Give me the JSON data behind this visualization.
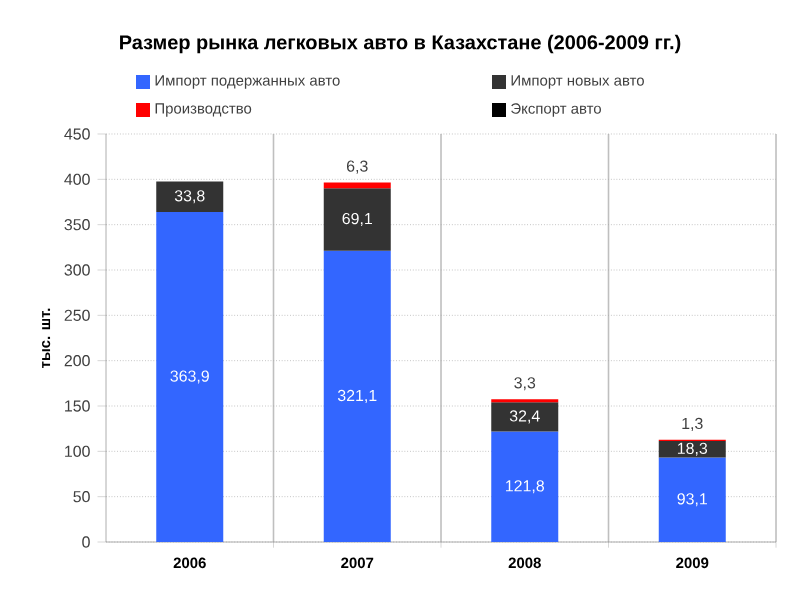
{
  "chart_data": {
    "type": "bar",
    "title": "Размер рынка легковых авто в Казахстане (2006-2009 гг.)",
    "ylabel": "тыс. шт.",
    "categories": [
      "2006",
      "2007",
      "2008",
      "2009"
    ],
    "stacked": true,
    "series": [
      {
        "name": "Импорт подержанных авто",
        "color": "#3366ff",
        "values": [
          363.9,
          321.1,
          121.8,
          93.1
        ],
        "value_labels": [
          "363,9",
          "321,1",
          "121,8",
          "93,1"
        ]
      },
      {
        "name": "Импорт новых авто",
        "color": "#333333",
        "values": [
          33.8,
          69.1,
          32.4,
          18.3
        ],
        "value_labels": [
          "33,8",
          "69,1",
          "32,4",
          "18,3"
        ]
      },
      {
        "name": "Производство",
        "color": "#ff0000",
        "values": [
          null,
          6.3,
          3.3,
          1.3
        ],
        "value_labels": [
          null,
          "6,3",
          "3,3",
          "1,3"
        ]
      },
      {
        "name": "Экспорт авто",
        "color": "#000000",
        "values": [
          null,
          null,
          null,
          null
        ]
      }
    ],
    "ylim": [
      0,
      450
    ],
    "yticks": [
      0,
      50,
      100,
      150,
      200,
      250,
      300,
      350,
      400,
      450
    ],
    "grid": true,
    "legend": "top"
  }
}
